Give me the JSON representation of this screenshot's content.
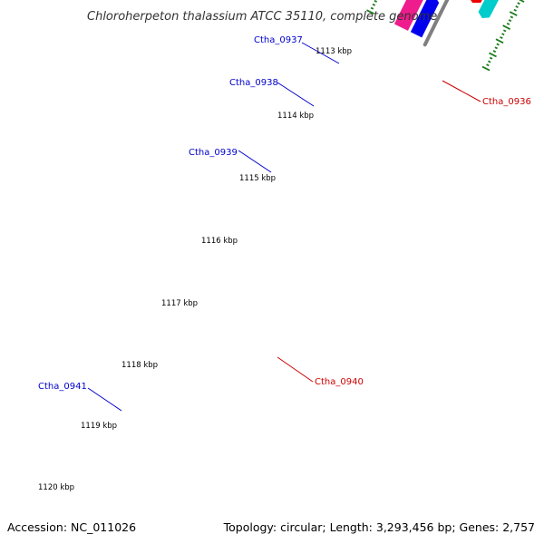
{
  "title": "Chloroherpeton thalassium ATCC 35110, complete genome",
  "footer": {
    "accession": "Accession: NC_011026",
    "topology": "Topology: circular; Length: 3,293,456 bp; Genes: 2,757"
  },
  "colors": {
    "backbone": "#7f7f7f",
    "tick": "#1e7d1e",
    "label_forward": "#0000cc",
    "label_reverse": "#cc0000"
  },
  "kbp_ticks": [
    "1113 kbp",
    "1114 kbp",
    "1115 kbp",
    "1116 kbp",
    "1117 kbp",
    "1118 kbp",
    "1119 kbp",
    "1120 kbp"
  ],
  "gene_labels": [
    {
      "text": "Ctha_0937",
      "color": "#0000cc"
    },
    {
      "text": "Ctha_0938",
      "color": "#0000cc"
    },
    {
      "text": "Ctha_0939",
      "color": "#0000cc"
    },
    {
      "text": "Ctha_0941",
      "color": "#0000cc"
    },
    {
      "text": "Ctha_0936",
      "color": "#cc0000"
    },
    {
      "text": "Ctha_0940",
      "color": "#cc0000"
    }
  ],
  "features": [
    {
      "name": "gene-forward-blue",
      "color": "#0000ee"
    },
    {
      "name": "gene-forward-orange",
      "color": "#f08c00"
    },
    {
      "name": "gene-forward-pink",
      "color": "#ee1c8c"
    },
    {
      "name": "gene-reverse-red",
      "color": "#ee0000"
    },
    {
      "name": "gene-reverse-cyan",
      "color": "#00cccc"
    },
    {
      "name": "gene-reverse-light",
      "color": "#ffc8c8"
    }
  ]
}
